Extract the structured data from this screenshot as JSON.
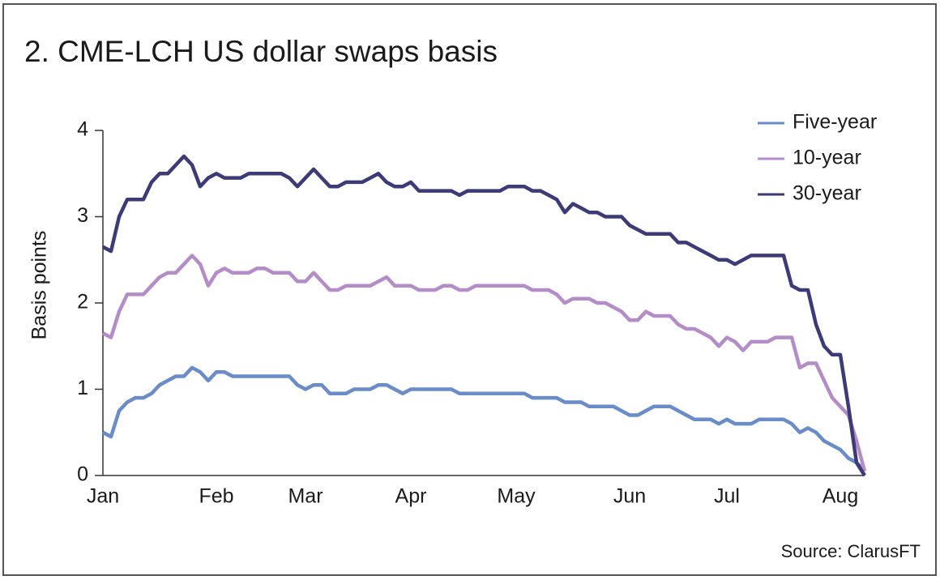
{
  "chart_data": {
    "type": "line",
    "title": "2. CME-LCH US dollar swaps basis",
    "y_label": "Basis points",
    "source": "Source: ClarusFT",
    "categories": [
      "Jan",
      null,
      null,
      null,
      null,
      null,
      null,
      null,
      null,
      null,
      null,
      null,
      null,
      null,
      "Feb",
      null,
      null,
      null,
      null,
      null,
      null,
      null,
      null,
      null,
      null,
      "Mar",
      null,
      null,
      null,
      null,
      null,
      null,
      null,
      null,
      null,
      null,
      null,
      null,
      "Apr",
      null,
      null,
      null,
      null,
      null,
      null,
      null,
      null,
      null,
      null,
      null,
      null,
      "May",
      null,
      null,
      null,
      null,
      null,
      null,
      null,
      null,
      null,
      null,
      null,
      null,
      null,
      "Jun",
      null,
      null,
      null,
      null,
      null,
      null,
      null,
      null,
      null,
      null,
      null,
      "Jul",
      null,
      null,
      null,
      null,
      null,
      null,
      null,
      null,
      null,
      null,
      null,
      null,
      null,
      "Aug",
      null,
      null,
      null
    ],
    "series": [
      {
        "name": "Five-year",
        "color": "#6a8cc8",
        "values": [
          0.5,
          0.45,
          0.75,
          0.85,
          0.9,
          0.9,
          0.95,
          1.05,
          1.1,
          1.15,
          1.15,
          1.25,
          1.2,
          1.1,
          1.2,
          1.2,
          1.15,
          1.15,
          1.15,
          1.15,
          1.15,
          1.15,
          1.15,
          1.15,
          1.05,
          1.0,
          1.05,
          1.05,
          0.95,
          0.95,
          0.95,
          1.0,
          1.0,
          1.0,
          1.05,
          1.05,
          1.0,
          0.95,
          1.0,
          1.0,
          1.0,
          1.0,
          1.0,
          1.0,
          0.95,
          0.95,
          0.95,
          0.95,
          0.95,
          0.95,
          0.95,
          0.95,
          0.95,
          0.9,
          0.9,
          0.9,
          0.9,
          0.85,
          0.85,
          0.85,
          0.8,
          0.8,
          0.8,
          0.8,
          0.75,
          0.7,
          0.7,
          0.75,
          0.8,
          0.8,
          0.8,
          0.75,
          0.7,
          0.65,
          0.65,
          0.65,
          0.6,
          0.65,
          0.6,
          0.6,
          0.6,
          0.65,
          0.65,
          0.65,
          0.65,
          0.6,
          0.5,
          0.55,
          0.5,
          0.4,
          0.35,
          0.3,
          0.2,
          0.15,
          0.05
        ]
      },
      {
        "name": "10-year",
        "color": "#b48cc8",
        "values": [
          1.65,
          1.6,
          1.9,
          2.1,
          2.1,
          2.1,
          2.2,
          2.3,
          2.35,
          2.35,
          2.45,
          2.55,
          2.45,
          2.2,
          2.35,
          2.4,
          2.35,
          2.35,
          2.35,
          2.4,
          2.4,
          2.35,
          2.35,
          2.35,
          2.25,
          2.25,
          2.35,
          2.25,
          2.15,
          2.15,
          2.2,
          2.2,
          2.2,
          2.2,
          2.25,
          2.3,
          2.2,
          2.2,
          2.2,
          2.15,
          2.15,
          2.15,
          2.2,
          2.2,
          2.15,
          2.15,
          2.2,
          2.2,
          2.2,
          2.2,
          2.2,
          2.2,
          2.2,
          2.15,
          2.15,
          2.15,
          2.1,
          2.0,
          2.05,
          2.05,
          2.05,
          2.0,
          2.0,
          1.95,
          1.9,
          1.8,
          1.8,
          1.9,
          1.85,
          1.85,
          1.85,
          1.75,
          1.7,
          1.7,
          1.65,
          1.6,
          1.5,
          1.6,
          1.55,
          1.45,
          1.55,
          1.55,
          1.55,
          1.6,
          1.6,
          1.6,
          1.25,
          1.3,
          1.3,
          1.1,
          0.9,
          0.8,
          0.7,
          0.4,
          0.05
        ]
      },
      {
        "name": "30-year",
        "color": "#3d3a78",
        "values": [
          2.65,
          2.6,
          3.0,
          3.2,
          3.2,
          3.2,
          3.4,
          3.5,
          3.5,
          3.6,
          3.7,
          3.6,
          3.35,
          3.45,
          3.5,
          3.45,
          3.45,
          3.45,
          3.5,
          3.5,
          3.5,
          3.5,
          3.5,
          3.45,
          3.35,
          3.45,
          3.55,
          3.45,
          3.35,
          3.35,
          3.4,
          3.4,
          3.4,
          3.45,
          3.5,
          3.4,
          3.35,
          3.35,
          3.4,
          3.3,
          3.3,
          3.3,
          3.3,
          3.3,
          3.25,
          3.3,
          3.3,
          3.3,
          3.3,
          3.3,
          3.35,
          3.35,
          3.35,
          3.3,
          3.3,
          3.25,
          3.2,
          3.05,
          3.15,
          3.1,
          3.05,
          3.05,
          3.0,
          3.0,
          3.0,
          2.9,
          2.85,
          2.8,
          2.8,
          2.8,
          2.8,
          2.7,
          2.7,
          2.65,
          2.6,
          2.55,
          2.5,
          2.5,
          2.45,
          2.5,
          2.55,
          2.55,
          2.55,
          2.55,
          2.55,
          2.2,
          2.15,
          2.15,
          1.75,
          1.5,
          1.4,
          1.4,
          0.8,
          0.15,
          0.0
        ]
      }
    ],
    "ylim": [
      0,
      4
    ],
    "yticks": [
      0,
      1,
      2,
      3,
      4
    ],
    "grid": false,
    "legend": "top-right"
  }
}
